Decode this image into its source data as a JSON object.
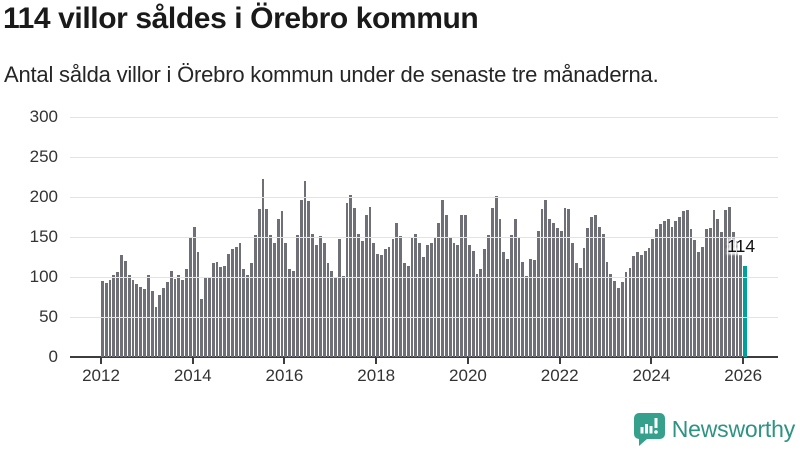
{
  "header": {
    "title": "114 villor såldes i Örebro kommun",
    "subtitle": "Antal sålda villor i Örebro kommun under de senaste tre månaderna."
  },
  "chart_data": {
    "type": "bar",
    "title": "114 villor såldes i Örebro kommun",
    "xlabel": "",
    "ylabel": "",
    "x_start": "2012-01",
    "x_interval": "month",
    "x_tick_years": [
      2012,
      2014,
      2016,
      2018,
      2020,
      2022,
      2024,
      2026
    ],
    "y_ticks": [
      0,
      50,
      100,
      150,
      200,
      250,
      300
    ],
    "ylim": [
      0,
      300
    ],
    "grid": true,
    "legend_position": "none",
    "bar_color": "#6f6f78",
    "grid_color": "#e3e3e3",
    "axis_color": "#3d3d3d",
    "highlight": {
      "index": 168,
      "value": 114,
      "label": "114",
      "color": "#00a19c"
    },
    "values": [
      95,
      93,
      96,
      103,
      106,
      127,
      120,
      103,
      96,
      91,
      88,
      85,
      103,
      83,
      63,
      77,
      86,
      94,
      108,
      98,
      103,
      96,
      110,
      149,
      163,
      131,
      73,
      100,
      100,
      117,
      119,
      113,
      114,
      129,
      135,
      138,
      143,
      110,
      103,
      117,
      152,
      185,
      222,
      185,
      153,
      142,
      173,
      183,
      143,
      110,
      108,
      153,
      196,
      220,
      195,
      154,
      140,
      151,
      142,
      118,
      107,
      99,
      147,
      101,
      193,
      203,
      186,
      154,
      145,
      178,
      188,
      142,
      129,
      128,
      135,
      138,
      147,
      167,
      151,
      117,
      114,
      149,
      154,
      142,
      125,
      140,
      142,
      149,
      168,
      196,
      177,
      149,
      143,
      140,
      178,
      178,
      140,
      133,
      104,
      110,
      135,
      153,
      186,
      201,
      172,
      131,
      123,
      152,
      172,
      150,
      119,
      101,
      123,
      121,
      158,
      185,
      196,
      172,
      167,
      161,
      158,
      186,
      185,
      143,
      117,
      111,
      136,
      161,
      175,
      178,
      163,
      154,
      119,
      104,
      95,
      86,
      94,
      106,
      111,
      126,
      131,
      128,
      133,
      136,
      147,
      160,
      166,
      170,
      173,
      163,
      170,
      175,
      182,
      184,
      160,
      146,
      131,
      137,
      160,
      161,
      184,
      172,
      156,
      184,
      187,
      156,
      145,
      128,
      114
    ]
  },
  "annotation": {
    "last_value_label": "114"
  },
  "footer": {
    "brand": "Newsworthy",
    "brand_color": "#2e9383",
    "icon_color": "#35a18d",
    "icon": "bar-chart-speech-bubble-icon"
  }
}
